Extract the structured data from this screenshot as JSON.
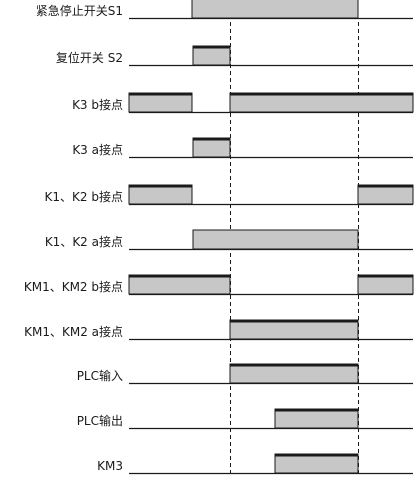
{
  "colors": {
    "pulse_fill": "#c7c7c7",
    "pulse_top": "#1a1a1a",
    "baseline": "#1a1a1a",
    "guide": "#1a1a1a",
    "text": "#1a1a1a"
  },
  "signals": [
    {
      "id": "s1",
      "label": "紧急停止开关S1",
      "pulses": [
        [
          2,
          6
        ]
      ],
      "top_bar": false
    },
    {
      "id": "s2",
      "label": "复位开关 S2",
      "pulses": [
        [
          3,
          4
        ]
      ],
      "top_bar": true
    },
    {
      "id": "k3b",
      "label": "K3 b接点",
      "pulses": [
        [
          0,
          2
        ],
        [
          4,
          8
        ]
      ],
      "top_bar": true
    },
    {
      "id": "k3a",
      "label": "K3 a接点",
      "pulses": [
        [
          3,
          4
        ]
      ],
      "top_bar": true
    },
    {
      "id": "k12b",
      "label": "K1、K2 b接点",
      "pulses": [
        [
          0,
          2
        ],
        [
          6,
          8
        ]
      ],
      "top_bar": true
    },
    {
      "id": "k12a",
      "label": "K1、K2 a接点",
      "pulses": [
        [
          3,
          6
        ]
      ],
      "top_bar": false
    },
    {
      "id": "km12b",
      "label": "KM1、KM2 b接点",
      "pulses": [
        [
          0,
          4
        ],
        [
          6,
          8
        ]
      ],
      "top_bar": true
    },
    {
      "id": "km12a",
      "label": "KM1、KM2 a接点",
      "pulses": [
        [
          4,
          6
        ]
      ],
      "top_bar": true
    },
    {
      "id": "plcin",
      "label": "PLC输入",
      "pulses": [
        [
          4,
          6
        ]
      ],
      "top_bar": true
    },
    {
      "id": "plcout",
      "label": "PLC输出",
      "pulses": [
        [
          5,
          6
        ]
      ],
      "top_bar": true
    },
    {
      "id": "km3",
      "label": "KM3",
      "pulses": [
        [
          5,
          6
        ]
      ],
      "top_bar": true
    }
  ],
  "guides": [
    4,
    6
  ]
}
